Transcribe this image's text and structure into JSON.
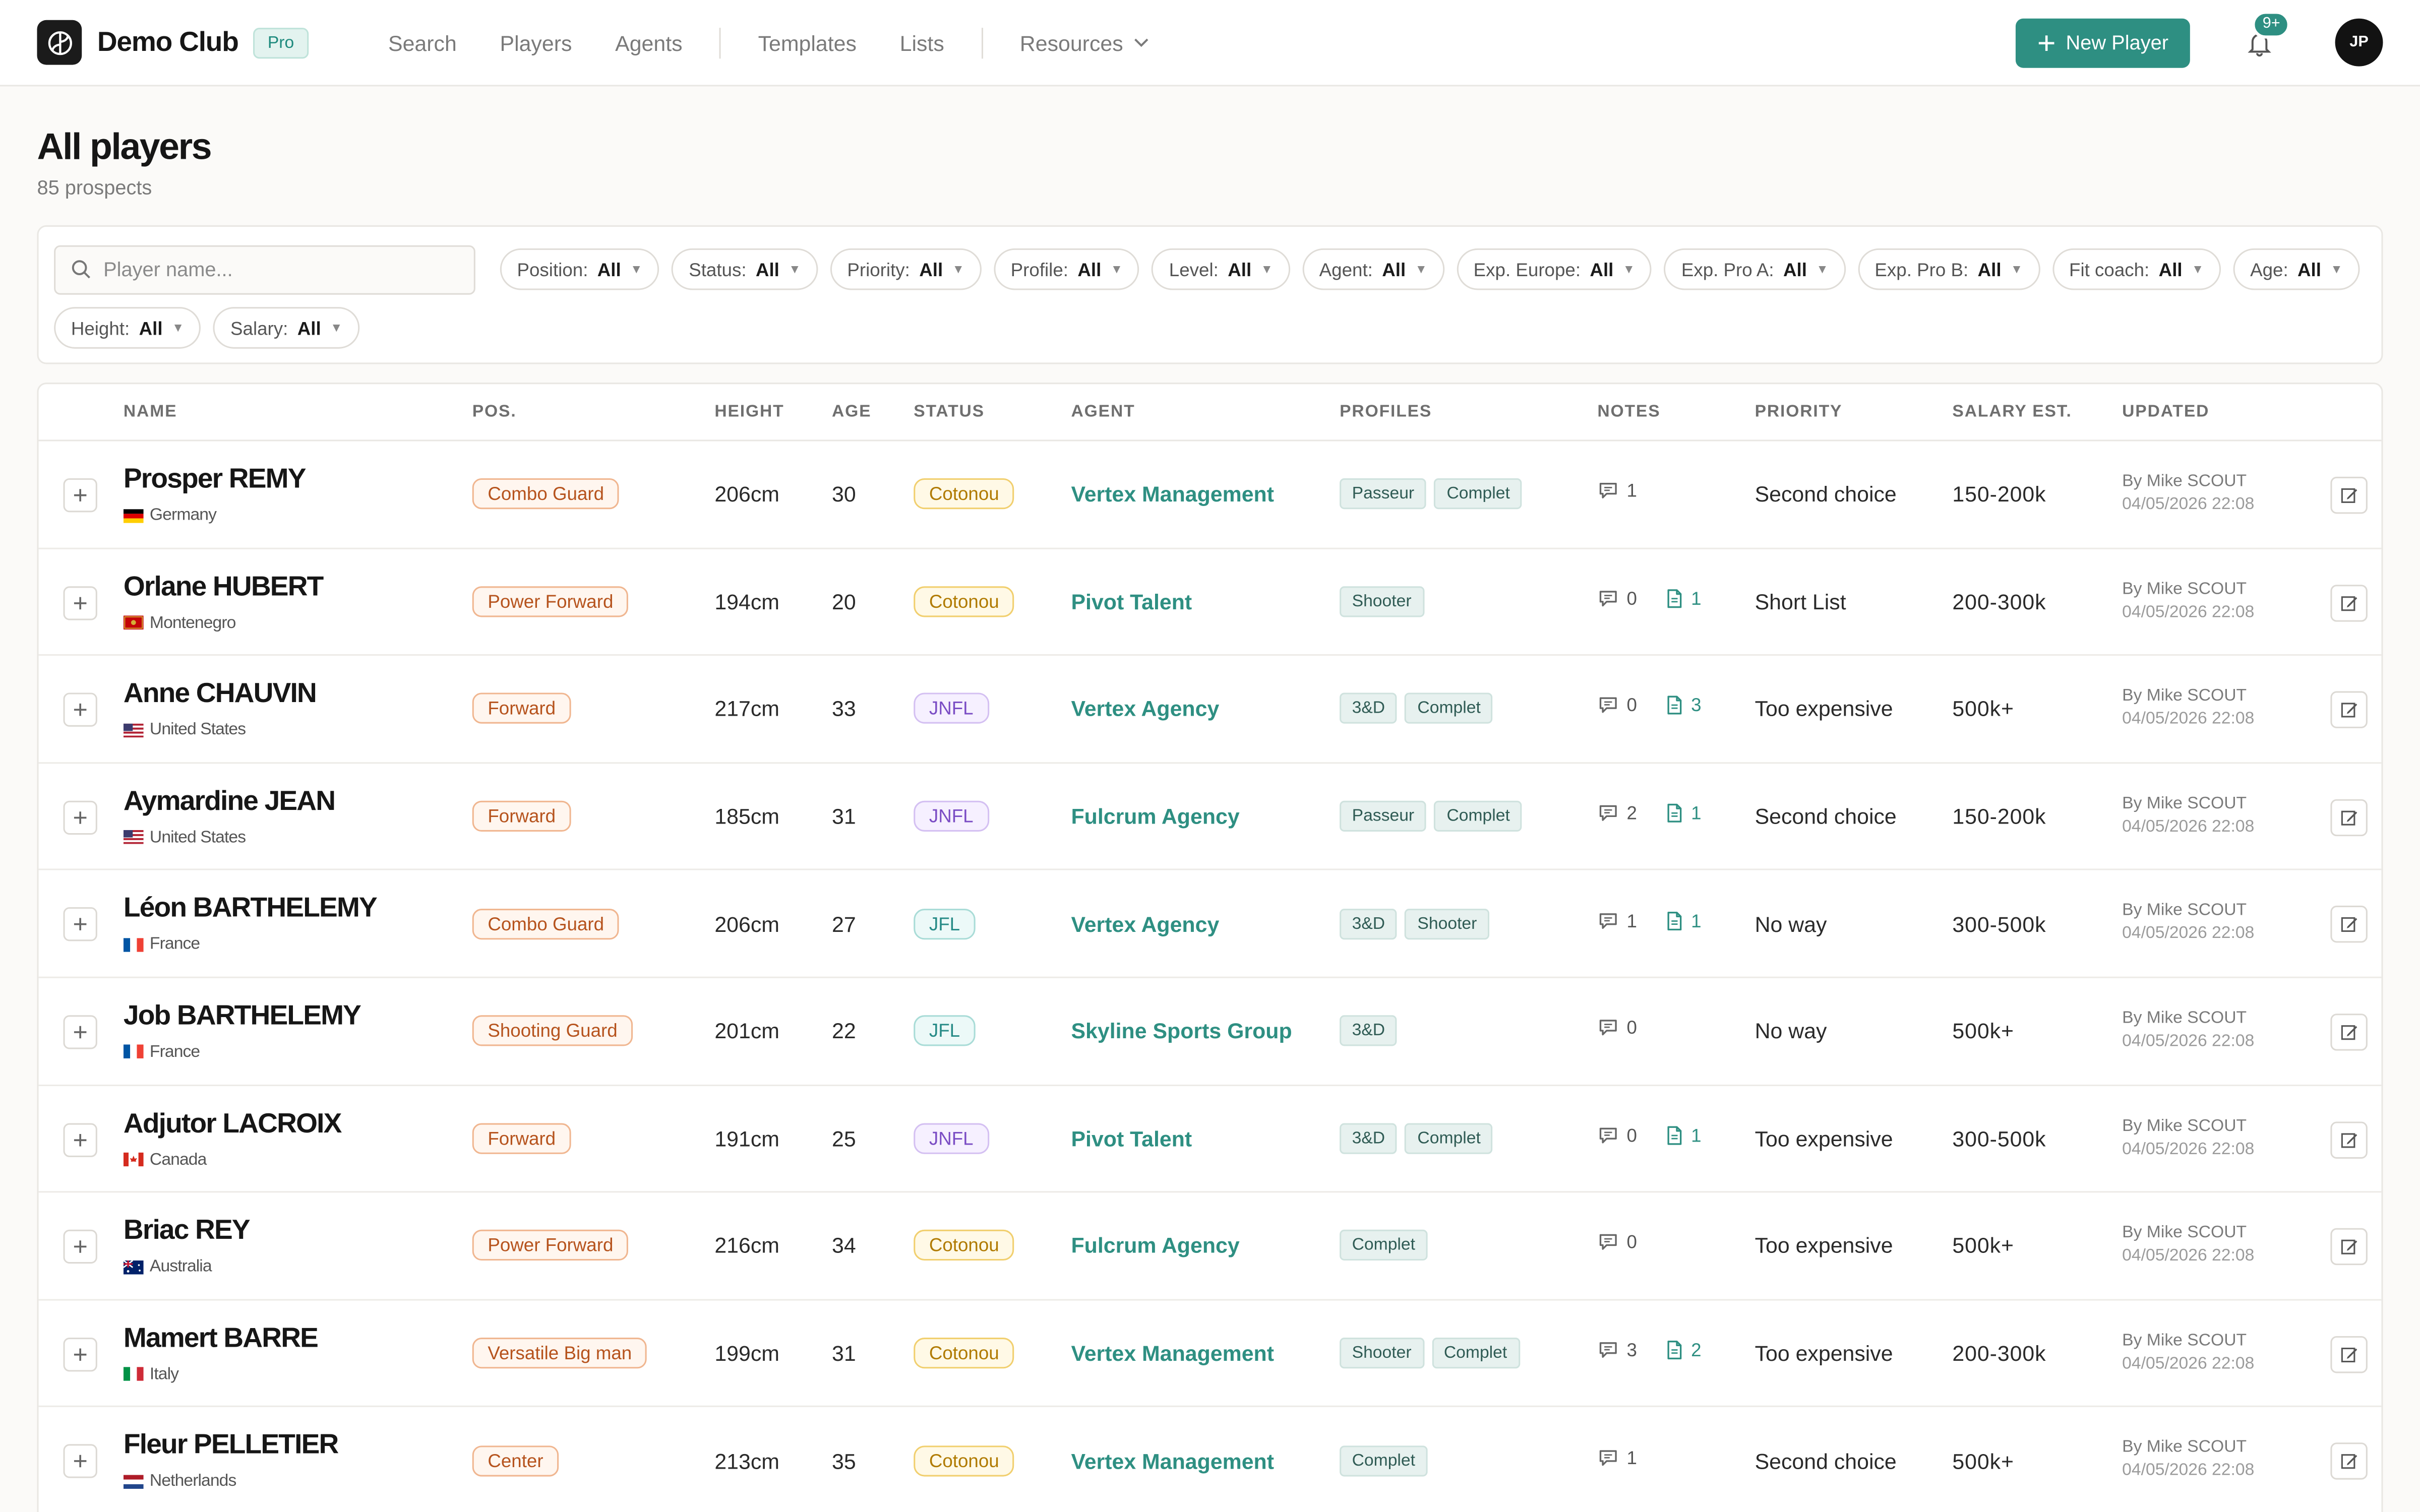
{
  "app": {
    "brand": "Demo Club",
    "plan_badge": "Pro"
  },
  "nav": {
    "search": "Search",
    "players": "Players",
    "agents": "Agents",
    "templates": "Templates",
    "lists": "Lists",
    "resources": "Resources"
  },
  "header": {
    "new_player_label": "New Player",
    "notification_count": "9+",
    "user_initials": "JP"
  },
  "page": {
    "title": "All players",
    "subtitle": "85 prospects"
  },
  "search": {
    "placeholder": "Player name..."
  },
  "filters": [
    {
      "label": "Position:",
      "value": "All"
    },
    {
      "label": "Status:",
      "value": "All"
    },
    {
      "label": "Priority:",
      "value": "All"
    },
    {
      "label": "Profile:",
      "value": "All"
    },
    {
      "label": "Level:",
      "value": "All"
    },
    {
      "label": "Agent:",
      "value": "All"
    },
    {
      "label": "Exp. Europe:",
      "value": "All"
    },
    {
      "label": "Exp. Pro A:",
      "value": "All"
    },
    {
      "label": "Exp. Pro B:",
      "value": "All"
    },
    {
      "label": "Fit coach:",
      "value": "All"
    },
    {
      "label": "Age:",
      "value": "All"
    },
    {
      "label": "Height:",
      "value": "All"
    },
    {
      "label": "Salary:",
      "value": "All"
    }
  ],
  "table": {
    "columns": {
      "name": "NAME",
      "pos": "POS.",
      "height": "HEIGHT",
      "age": "AGE",
      "status": "STATUS",
      "agent": "AGENT",
      "profiles": "PROFILES",
      "notes": "NOTES",
      "priority": "PRIORITY",
      "salary": "SALARY EST.",
      "updated": "UPDATED"
    },
    "rows": [
      {
        "name": "Prosper REMY",
        "country": "Germany",
        "flag": "de",
        "position": "Combo Guard",
        "height": "206cm",
        "age": "30",
        "status": "Cotonou",
        "status_kind": "cot",
        "agent": "Vertex Management",
        "profiles": [
          "Passeur",
          "Complet"
        ],
        "notes": "1",
        "docs": null,
        "priority": "Second choice",
        "salary": "150-200k",
        "updated_by": "By Mike SCOUT",
        "updated_at": "04/05/2026 22:08"
      },
      {
        "name": "Orlane HUBERT",
        "country": "Montenegro",
        "flag": "me",
        "position": "Power Forward",
        "height": "194cm",
        "age": "20",
        "status": "Cotonou",
        "status_kind": "cot",
        "agent": "Pivot Talent",
        "profiles": [
          "Shooter"
        ],
        "notes": "0",
        "docs": "1",
        "priority": "Short List",
        "salary": "200-300k",
        "updated_by": "By Mike SCOUT",
        "updated_at": "04/05/2026 22:08"
      },
      {
        "name": "Anne CHAUVIN",
        "country": "United States",
        "flag": "us",
        "position": "Forward",
        "height": "217cm",
        "age": "33",
        "status": "JNFL",
        "status_kind": "jnfl",
        "agent": "Vertex Agency",
        "profiles": [
          "3&D",
          "Complet"
        ],
        "notes": "0",
        "docs": "3",
        "priority": "Too expensive",
        "salary": "500k+",
        "updated_by": "By Mike SCOUT",
        "updated_at": "04/05/2026 22:08"
      },
      {
        "name": "Aymardine JEAN",
        "country": "United States",
        "flag": "us",
        "position": "Forward",
        "height": "185cm",
        "age": "31",
        "status": "JNFL",
        "status_kind": "jnfl",
        "agent": "Fulcrum Agency",
        "profiles": [
          "Passeur",
          "Complet"
        ],
        "notes": "2",
        "docs": "1",
        "priority": "Second choice",
        "salary": "150-200k",
        "updated_by": "By Mike SCOUT",
        "updated_at": "04/05/2026 22:08"
      },
      {
        "name": "Léon BARTHELEMY",
        "country": "France",
        "flag": "fr",
        "position": "Combo Guard",
        "height": "206cm",
        "age": "27",
        "status": "JFL",
        "status_kind": "jfl",
        "agent": "Vertex Agency",
        "profiles": [
          "3&D",
          "Shooter"
        ],
        "notes": "1",
        "docs": "1",
        "priority": "No way",
        "salary": "300-500k",
        "updated_by": "By Mike SCOUT",
        "updated_at": "04/05/2026 22:08"
      },
      {
        "name": "Job BARTHELEMY",
        "country": "France",
        "flag": "fr",
        "position": "Shooting Guard",
        "height": "201cm",
        "age": "22",
        "status": "JFL",
        "status_kind": "jfl",
        "agent": "Skyline Sports Group",
        "profiles": [
          "3&D"
        ],
        "notes": "0",
        "docs": null,
        "priority": "No way",
        "salary": "500k+",
        "updated_by": "By Mike SCOUT",
        "updated_at": "04/05/2026 22:08"
      },
      {
        "name": "Adjutor LACROIX",
        "country": "Canada",
        "flag": "ca",
        "position": "Forward",
        "height": "191cm",
        "age": "25",
        "status": "JNFL",
        "status_kind": "jnfl",
        "agent": "Pivot Talent",
        "profiles": [
          "3&D",
          "Complet"
        ],
        "notes": "0",
        "docs": "1",
        "priority": "Too expensive",
        "salary": "300-500k",
        "updated_by": "By Mike SCOUT",
        "updated_at": "04/05/2026 22:08"
      },
      {
        "name": "Briac REY",
        "country": "Australia",
        "flag": "au",
        "position": "Power Forward",
        "height": "216cm",
        "age": "34",
        "status": "Cotonou",
        "status_kind": "cot",
        "agent": "Fulcrum Agency",
        "profiles": [
          "Complet"
        ],
        "notes": "0",
        "docs": null,
        "priority": "Too expensive",
        "salary": "500k+",
        "updated_by": "By Mike SCOUT",
        "updated_at": "04/05/2026 22:08"
      },
      {
        "name": "Mamert BARRE",
        "country": "Italy",
        "flag": "it",
        "position": "Versatile Big man",
        "height": "199cm",
        "age": "31",
        "status": "Cotonou",
        "status_kind": "cot",
        "agent": "Vertex Management",
        "profiles": [
          "Shooter",
          "Complet"
        ],
        "notes": "3",
        "docs": "2",
        "priority": "Too expensive",
        "salary": "200-300k",
        "updated_by": "By Mike SCOUT",
        "updated_at": "04/05/2026 22:08"
      },
      {
        "name": "Fleur PELLETIER",
        "country": "Netherlands",
        "flag": "nl",
        "position": "Center",
        "height": "213cm",
        "age": "35",
        "status": "Cotonou",
        "status_kind": "cot",
        "agent": "Vertex Management",
        "profiles": [
          "Complet"
        ],
        "notes": "1",
        "docs": null,
        "priority": "Second choice",
        "salary": "500k+",
        "updated_by": "By Mike SCOUT",
        "updated_at": "04/05/2026 22:08"
      }
    ]
  },
  "icons": {
    "logo": "club-logo-icon",
    "search": "search-icon",
    "plus": "plus-icon",
    "bell": "bell-icon",
    "chevron": "chevron-down-icon",
    "comment": "comment-icon",
    "document": "document-icon",
    "edit": "edit-icon"
  },
  "colors": {
    "accent": "#2e8f82",
    "position_badge": "#b6531d",
    "status_cotonou": "#b07a00",
    "status_jnfl": "#7a4cc4",
    "status_jfl": "#258a86"
  }
}
